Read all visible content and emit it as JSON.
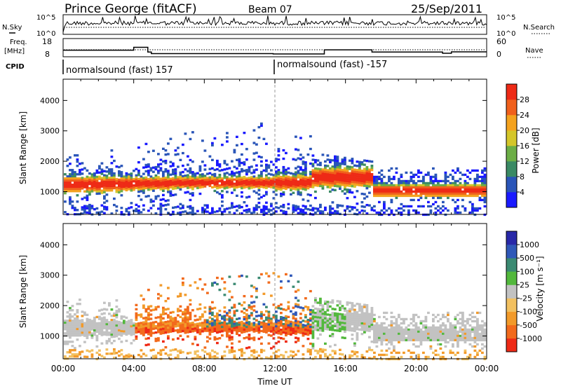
{
  "header": {
    "station": "Prince George (fitACF)",
    "beam": "Beam 07",
    "date": "25/Sep/2011"
  },
  "left_labels": {
    "nsky": "N.Sky",
    "freq_line1": "Freq.",
    "freq_line2": "[MHz]",
    "cpid": "CPID"
  },
  "right_labels": {
    "nsearch": "N.Search",
    "nave": "Nave"
  },
  "cpid_segments": [
    {
      "label": "normalsound (fast) 157",
      "start_hour": 0
    },
    {
      "label": "normalsound (fast) -157",
      "start_hour": 12
    }
  ],
  "chart_data": [
    {
      "type": "line",
      "name": "noise",
      "series": [
        {
          "name": "N.Sky"
        },
        {
          "name": "N.Search"
        }
      ],
      "left_ticks": [
        "10^5",
        "10^0"
      ],
      "right_ticks": [
        "10^5",
        "10^0"
      ]
    },
    {
      "type": "line",
      "name": "frequency_nave",
      "series": [
        {
          "name": "Freq."
        },
        {
          "name": "Nave"
        }
      ],
      "left_ticks": [
        "18",
        "8"
      ],
      "right_ticks": [
        "60",
        "0"
      ],
      "freq_steps": [
        {
          "x": 0.0,
          "y": 13.2
        },
        {
          "x": 4.0,
          "y": 13.2
        },
        {
          "x": 4.0,
          "y": 15.5
        },
        {
          "x": 4.8,
          "y": 15.5
        },
        {
          "x": 4.8,
          "y": 11.8
        },
        {
          "x": 5.0,
          "y": 11.8
        },
        {
          "x": 5.0,
          "y": 10.5
        },
        {
          "x": 11.9,
          "y": 10.5
        },
        {
          "x": 11.9,
          "y": 10.2
        },
        {
          "x": 14.8,
          "y": 10.2
        },
        {
          "x": 14.8,
          "y": 13.5
        },
        {
          "x": 17.5,
          "y": 13.5
        },
        {
          "x": 17.5,
          "y": 11.8
        },
        {
          "x": 21.5,
          "y": 11.8
        },
        {
          "x": 21.5,
          "y": 10.8
        },
        {
          "x": 22.0,
          "y": 10.8
        },
        {
          "x": 22.0,
          "y": 11.9
        },
        {
          "x": 24.0,
          "y": 11.9
        }
      ]
    },
    {
      "type": "heatmap",
      "name": "power",
      "ylabel": "Slant Range [km]",
      "xlim": [
        0,
        24
      ],
      "ylim": [
        250,
        4700
      ],
      "yticks": [
        1000,
        2000,
        3000,
        4000
      ],
      "colorbar": {
        "label": "Power [dB]",
        "tick_labels": [
          "4",
          "8",
          "12",
          "16",
          "20",
          "24",
          "28"
        ],
        "colors": [
          "#1a1aff",
          "#2a55b8",
          "#3a8a64",
          "#6cae46",
          "#d4c62a",
          "#f4a21e",
          "#f0601c",
          "#ee2a16"
        ]
      }
    },
    {
      "type": "heatmap",
      "name": "velocity",
      "ylabel": "Slant Range [km]",
      "xlabel": "Time UT",
      "xlim": [
        0,
        24
      ],
      "ylim": [
        250,
        4700
      ],
      "yticks": [
        1000,
        2000,
        3000,
        4000
      ],
      "xticks": [
        "00:00",
        "04:00",
        "08:00",
        "12:00",
        "16:00",
        "20:00",
        "00:00"
      ],
      "colorbar": {
        "label": "Velocity [m s⁻¹]",
        "tick_labels": [
          "1000",
          "500",
          "100",
          "25",
          "-25",
          "-100",
          "-500",
          "-1000"
        ],
        "colors": [
          "#2828a8",
          "#2f58b8",
          "#3b8a72",
          "#52b83c",
          "#c2c2c2",
          "#f2c060",
          "#f29a2a",
          "#f26a1c",
          "#ee2a16"
        ]
      }
    }
  ]
}
